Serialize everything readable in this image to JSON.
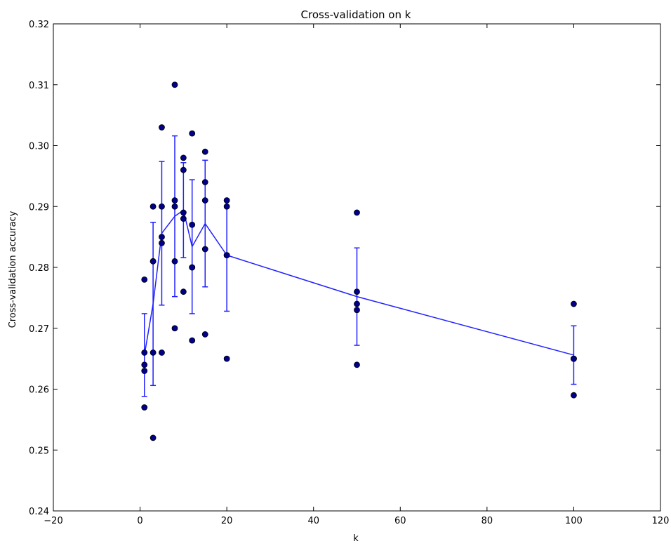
{
  "chart_data": {
    "type": "scatter",
    "title": "Cross-validation on k",
    "xlabel": "k",
    "ylabel": "Cross-validation accuracy",
    "xlim": [
      -20,
      120
    ],
    "ylim": [
      0.24,
      0.32
    ],
    "xticks": [
      -20,
      0,
      20,
      40,
      60,
      80,
      100,
      120
    ],
    "xtick_labels": [
      "−20",
      "0",
      "20",
      "40",
      "60",
      "80",
      "100",
      "120"
    ],
    "yticks": [
      0.24,
      0.25,
      0.26,
      0.27,
      0.28,
      0.29,
      0.3,
      0.31,
      0.32
    ],
    "ytick_labels": [
      "0.24",
      "0.25",
      "0.26",
      "0.27",
      "0.28",
      "0.29",
      "0.30",
      "0.31",
      "0.32"
    ],
    "grid": false,
    "legend": "none",
    "points": [
      {
        "k": 1,
        "values": [
          0.278,
          0.266,
          0.264,
          0.263,
          0.257
        ]
      },
      {
        "k": 3,
        "values": [
          0.29,
          0.281,
          0.281,
          0.266,
          0.252
        ]
      },
      {
        "k": 5,
        "values": [
          0.303,
          0.29,
          0.285,
          0.284,
          0.266
        ]
      },
      {
        "k": 8,
        "values": [
          0.31,
          0.291,
          0.29,
          0.281,
          0.27
        ]
      },
      {
        "k": 10,
        "values": [
          0.298,
          0.296,
          0.289,
          0.288,
          0.276
        ]
      },
      {
        "k": 12,
        "values": [
          0.302,
          0.287,
          0.28,
          0.28,
          0.268
        ]
      },
      {
        "k": 15,
        "values": [
          0.299,
          0.294,
          0.291,
          0.283,
          0.269
        ]
      },
      {
        "k": 20,
        "values": [
          0.291,
          0.29,
          0.282,
          0.282,
          0.265
        ]
      },
      {
        "k": 50,
        "values": [
          0.289,
          0.276,
          0.274,
          0.273,
          0.264
        ]
      },
      {
        "k": 100,
        "values": [
          0.274,
          0.265,
          0.265,
          0.265,
          0.259
        ]
      }
    ],
    "mean_line": {
      "x": [
        1,
        3,
        5,
        8,
        10,
        12,
        15,
        20,
        50,
        100
      ],
      "y": [
        0.2656,
        0.274,
        0.2856,
        0.2884,
        0.2894,
        0.2834,
        0.2872,
        0.282,
        0.2752,
        0.2656
      ],
      "std": [
        0.0068,
        0.0134,
        0.0118,
        0.0132,
        0.0078,
        0.011,
        0.0104,
        0.0092,
        0.008,
        0.0048
      ]
    },
    "colors": {
      "points": "#00008b",
      "line": "#2020ff",
      "axes": "#000000"
    }
  }
}
